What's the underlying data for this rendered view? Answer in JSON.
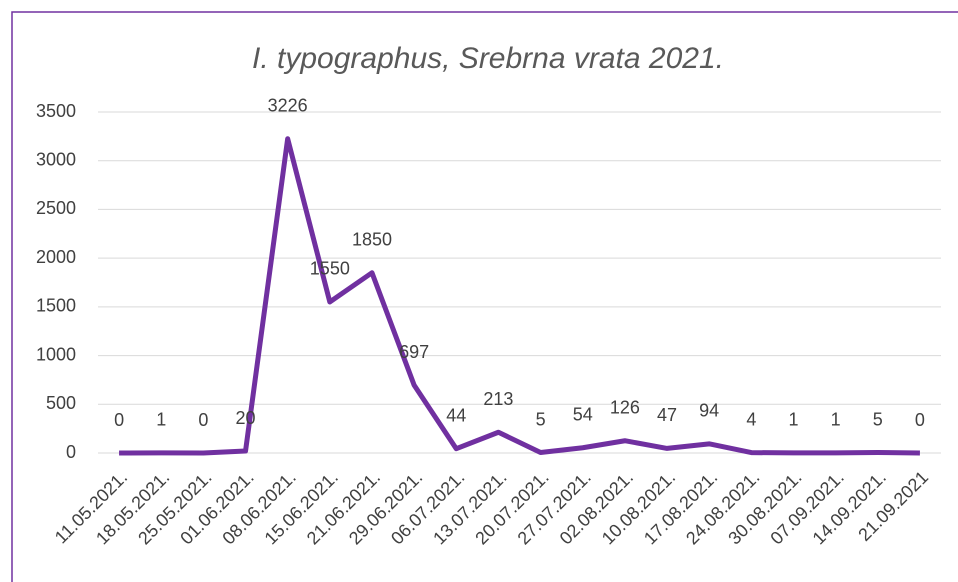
{
  "chart_data": {
    "type": "line",
    "title": "I. typographus, Srebrna vrata 2021.",
    "categories": [
      "11.05.2021.",
      "18.05.2021.",
      "25.05.2021.",
      "01.06.2021.",
      "08.06.2021.",
      "15.06.2021.",
      "21.06.2021.",
      "29.06.2021.",
      "06.07.2021.",
      "13.07.2021.",
      "20.07.2021.",
      "27.07.2021.",
      "02.08.2021.",
      "10.08.2021.",
      "17.08.2021.",
      "24.08.2021.",
      "30.08.2021.",
      "07.09.2021.",
      "14.09.2021.",
      "21.09.2021"
    ],
    "series": [
      {
        "name": "I. typographus",
        "color": "#7030a0",
        "values": [
          0,
          1,
          0,
          20,
          3226,
          1550,
          1850,
          697,
          44,
          213,
          5,
          54,
          126,
          47,
          94,
          4,
          1,
          1,
          5,
          0
        ]
      }
    ],
    "ylim": [
      0,
      3500
    ],
    "yticks": [
      0,
      500,
      1000,
      1500,
      2000,
      2500,
      3000,
      3500
    ],
    "grid": true
  }
}
